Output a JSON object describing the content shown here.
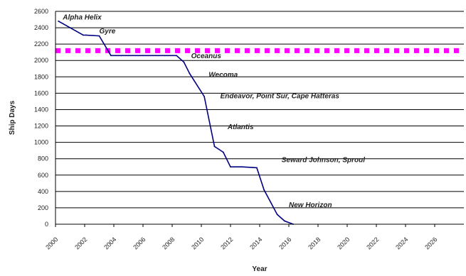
{
  "chart_data": {
    "type": "line",
    "title": "",
    "xlabel": "Year",
    "ylabel": "Ship Days",
    "xlim": [
      2000,
      2028
    ],
    "ylim": [
      0,
      2600
    ],
    "y_ticks": [
      0,
      200,
      400,
      600,
      800,
      1000,
      1200,
      1400,
      1600,
      1800,
      2000,
      2200,
      2400,
      2600
    ],
    "y_tick_labels": [
      "0",
      "200",
      "400",
      "600",
      "800",
      "1000",
      "1200",
      "1400",
      "1600",
      "1800",
      "2000",
      "2200",
      "2400",
      "2600"
    ],
    "x_ticks": [
      2000,
      2002,
      2004,
      2006,
      2008,
      2010,
      2012,
      2014,
      2016,
      2018,
      2020,
      2022,
      2024,
      2026
    ],
    "x_tick_labels": [
      "2000",
      "2002",
      "2004",
      "2006",
      "2008",
      "2010",
      "2012",
      "2014",
      "2016",
      "2018",
      "2020",
      "2022",
      "2024",
      "2026"
    ],
    "grid": "horizontal",
    "legend": "none",
    "colors": {
      "series": "#000080",
      "threshold": "#ff00ff",
      "grid": "#000000"
    },
    "series": [
      {
        "name": "",
        "style": "line",
        "color": "#000080",
        "x": [
          2000.2,
          2001.0,
          2001.9,
          2002.1,
          2003.0,
          2003.8,
          2004.5,
          2006.0,
          2007.5,
          2008.3,
          2008.8,
          2009.2,
          2010.2,
          2010.9,
          2011.5,
          2012.0,
          2012.4,
          2012.8,
          2013.8,
          2014.3,
          2015.2,
          2015.7,
          2016.3
        ],
        "y": [
          2480,
          2400,
          2310,
          2310,
          2300,
          2060,
          2060,
          2060,
          2060,
          2060,
          1980,
          1840,
          1560,
          950,
          880,
          700,
          700,
          700,
          690,
          420,
          120,
          40,
          0
        ]
      },
      {
        "name": "",
        "style": "line",
        "color": "#ff00ff",
        "x": [
          2000.0,
          2028.0
        ],
        "y": [
          2120,
          2120
        ]
      }
    ],
    "annotations": [
      {
        "text": "Alpha Helix",
        "x": 2000.5,
        "y": 2500
      },
      {
        "text": "Gyre",
        "x": 2003.0,
        "y": 2330
      },
      {
        "text": "Oceanus",
        "x": 2009.3,
        "y": 2030
      },
      {
        "text": "Wecoma",
        "x": 2010.5,
        "y": 1800
      },
      {
        "text": "Endeavor, Point Sur, Cape Hatteras",
        "x": 2011.3,
        "y": 1540
      },
      {
        "text": "Atlantis",
        "x": 2011.8,
        "y": 1160
      },
      {
        "text": "Seward Johnson, Sproul",
        "x": 2015.5,
        "y": 760
      },
      {
        "text": "New Horizon",
        "x": 2016.0,
        "y": 210
      }
    ]
  }
}
